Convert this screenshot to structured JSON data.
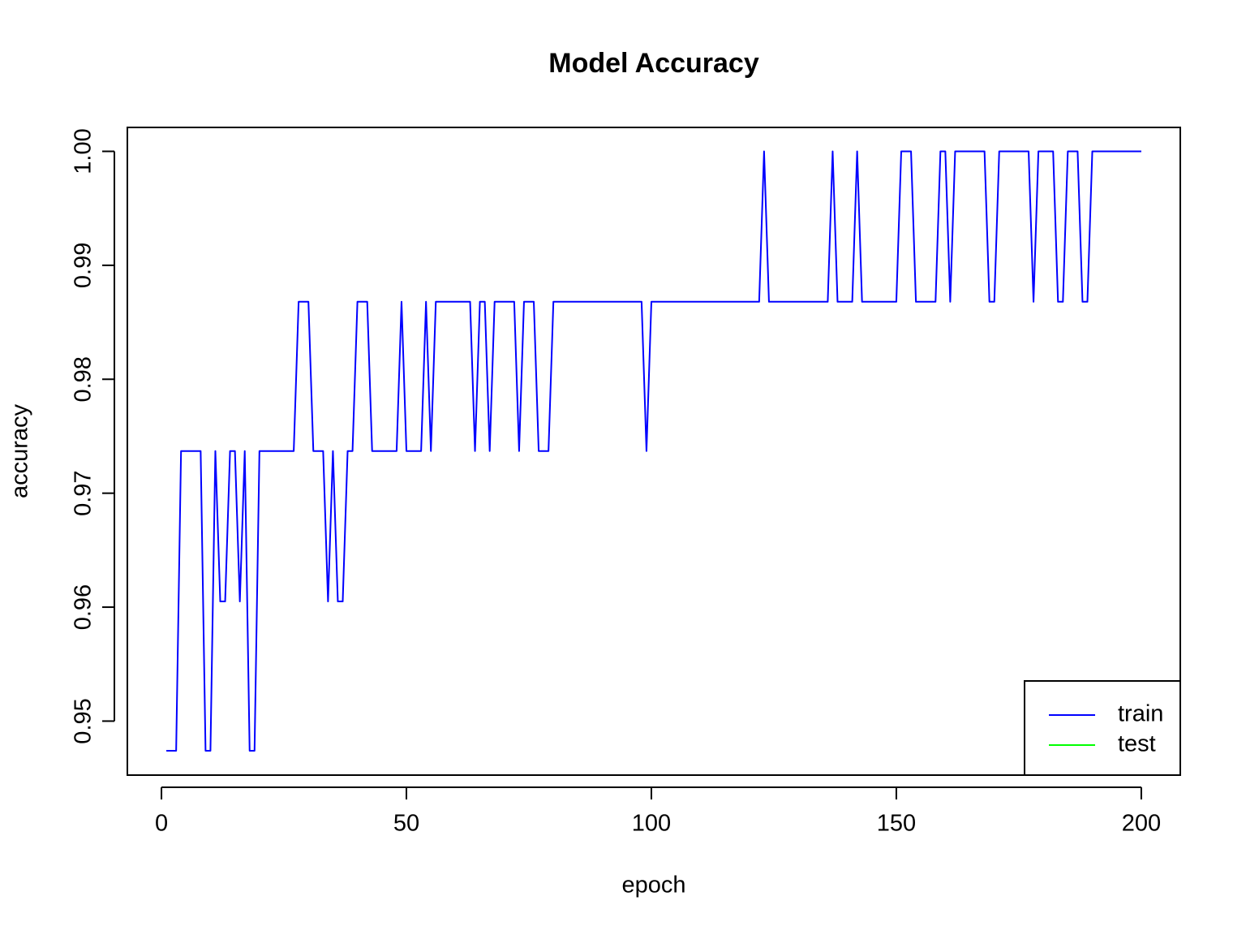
{
  "chart_data": {
    "type": "line",
    "title": "Model Accuracy",
    "x_label": "epoch",
    "y_label": "accuracy",
    "x": [
      1,
      2,
      3,
      4,
      5,
      6,
      7,
      8,
      9,
      10,
      11,
      12,
      13,
      14,
      15,
      16,
      17,
      18,
      19,
      20,
      21,
      22,
      23,
      24,
      25,
      26,
      27,
      28,
      29,
      30,
      31,
      32,
      33,
      34,
      35,
      36,
      37,
      38,
      39,
      40,
      41,
      42,
      43,
      44,
      45,
      46,
      47,
      48,
      49,
      50,
      51,
      52,
      53,
      54,
      55,
      56,
      57,
      58,
      59,
      60,
      61,
      62,
      63,
      64,
      65,
      66,
      67,
      68,
      69,
      70,
      71,
      72,
      73,
      74,
      75,
      76,
      77,
      78,
      79,
      80,
      81,
      82,
      83,
      84,
      85,
      86,
      87,
      88,
      89,
      90,
      91,
      92,
      93,
      94,
      95,
      96,
      97,
      98,
      99,
      100,
      101,
      102,
      103,
      104,
      105,
      106,
      107,
      108,
      109,
      110,
      111,
      112,
      113,
      114,
      115,
      116,
      117,
      118,
      119,
      120,
      121,
      122,
      123,
      124,
      125,
      126,
      127,
      128,
      129,
      130,
      131,
      132,
      133,
      134,
      135,
      136,
      137,
      138,
      139,
      140,
      141,
      142,
      143,
      144,
      145,
      146,
      147,
      148,
      149,
      150,
      151,
      152,
      153,
      154,
      155,
      156,
      157,
      158,
      159,
      160,
      161,
      162,
      163,
      164,
      165,
      166,
      167,
      168,
      169,
      170,
      171,
      172,
      173,
      174,
      175,
      176,
      177,
      178,
      179,
      180,
      181,
      182,
      183,
      184,
      185,
      186,
      187,
      188,
      189,
      190,
      191,
      192,
      193,
      194,
      195,
      196,
      197,
      198,
      199,
      200
    ],
    "series": [
      {
        "name": "train",
        "color": "#0000ff",
        "values": [
          0.9474,
          0.9474,
          0.9474,
          0.9737,
          0.9737,
          0.9737,
          0.9737,
          0.9737,
          0.9474,
          0.9474,
          0.9737,
          0.9605,
          0.9605,
          0.9737,
          0.9737,
          0.9605,
          0.9737,
          0.9474,
          0.9474,
          0.9737,
          0.9737,
          0.9737,
          0.9737,
          0.9737,
          0.9737,
          0.9737,
          0.9737,
          0.9868,
          0.9868,
          0.9868,
          0.9737,
          0.9737,
          0.9737,
          0.9605,
          0.9737,
          0.9605,
          0.9605,
          0.9737,
          0.9737,
          0.9868,
          0.9868,
          0.9868,
          0.9737,
          0.9737,
          0.9737,
          0.9737,
          0.9737,
          0.9737,
          0.9868,
          0.9737,
          0.9737,
          0.9737,
          0.9737,
          0.9868,
          0.9737,
          0.9868,
          0.9868,
          0.9868,
          0.9868,
          0.9868,
          0.9868,
          0.9868,
          0.9868,
          0.9737,
          0.9868,
          0.9868,
          0.9737,
          0.9868,
          0.9868,
          0.9868,
          0.9868,
          0.9868,
          0.9737,
          0.9868,
          0.9868,
          0.9868,
          0.9737,
          0.9737,
          0.9737,
          0.9868,
          0.9868,
          0.9868,
          0.9868,
          0.9868,
          0.9868,
          0.9868,
          0.9868,
          0.9868,
          0.9868,
          0.9868,
          0.9868,
          0.9868,
          0.9868,
          0.9868,
          0.9868,
          0.9868,
          0.9868,
          0.9868,
          0.9737,
          0.9868,
          0.9868,
          0.9868,
          0.9868,
          0.9868,
          0.9868,
          0.9868,
          0.9868,
          0.9868,
          0.9868,
          0.9868,
          0.9868,
          0.9868,
          0.9868,
          0.9868,
          0.9868,
          0.9868,
          0.9868,
          0.9868,
          0.9868,
          0.9868,
          0.9868,
          0.9868,
          1,
          0.9868,
          0.9868,
          0.9868,
          0.9868,
          0.9868,
          0.9868,
          0.9868,
          0.9868,
          0.9868,
          0.9868,
          0.9868,
          0.9868,
          0.9868,
          1,
          0.9868,
          0.9868,
          0.9868,
          0.9868,
          1,
          0.9868,
          0.9868,
          0.9868,
          0.9868,
          0.9868,
          0.9868,
          0.9868,
          0.9868,
          1,
          1,
          1,
          0.9868,
          0.9868,
          0.9868,
          0.9868,
          0.9868,
          1,
          1,
          0.9868,
          1,
          1,
          1,
          1,
          1,
          1,
          1,
          0.9868,
          0.9868,
          1,
          1,
          1,
          1,
          1,
          1,
          1,
          0.9868,
          1,
          1,
          1,
          1,
          0.9868,
          0.9868,
          1,
          1,
          1,
          0.9868,
          0.9868,
          1,
          1,
          1,
          1,
          1,
          1,
          1,
          1,
          1,
          1,
          1
        ]
      },
      {
        "name": "test",
        "color": "#00ff00",
        "values": [
          null,
          null,
          null,
          null,
          null,
          null,
          null,
          null,
          null,
          null,
          null,
          null,
          null,
          null,
          null,
          null,
          null,
          null,
          null,
          null,
          null,
          null,
          null,
          null,
          null,
          null,
          null,
          null,
          null,
          null,
          null,
          null,
          null,
          null,
          null,
          null,
          null,
          null,
          null,
          null,
          null,
          null,
          null,
          null,
          null,
          null,
          null,
          null,
          null,
          null,
          null,
          null,
          null,
          null,
          null,
          null,
          null,
          null,
          null,
          null,
          null,
          null,
          null,
          null,
          null,
          null,
          null,
          null,
          null,
          null,
          null,
          null,
          null,
          null,
          null,
          null,
          null,
          null,
          null,
          null,
          null,
          null,
          null,
          null,
          null,
          null,
          null,
          null,
          null,
          null,
          null,
          null,
          null,
          null,
          null,
          null,
          null,
          null,
          null,
          null,
          null,
          null,
          null,
          null,
          null,
          null,
          null,
          null,
          null,
          null,
          null,
          null,
          null,
          null,
          null,
          null,
          null,
          null,
          null,
          null,
          null,
          null,
          null,
          null,
          null,
          null,
          null,
          null,
          null,
          null,
          null,
          null,
          null,
          null,
          null,
          null,
          null,
          null,
          null,
          null,
          null,
          null,
          null,
          null,
          null,
          null,
          null,
          null,
          null,
          null,
          null,
          null,
          null,
          null,
          null,
          null,
          null,
          null,
          null,
          null,
          null,
          null,
          null,
          null,
          null,
          null,
          null,
          null,
          null,
          null,
          null,
          null,
          null,
          null,
          null,
          null,
          null,
          null,
          null,
          null,
          null,
          null,
          null,
          null,
          null,
          null,
          null,
          null,
          null,
          null,
          null,
          null,
          null,
          null,
          null,
          null,
          null,
          null,
          null,
          null
        ]
      }
    ],
    "xlim": [
      -6.96,
      207.96
    ],
    "xticks": [
      0,
      50,
      100,
      150,
      200
    ],
    "ylim": [
      0.94526,
      1.0021
    ],
    "yticks": [
      0.95,
      0.96,
      0.97,
      0.98,
      0.99,
      {
        "value": 1,
        "label": "1.00"
      }
    ],
    "legend": "bottom-right",
    "grid": false
  }
}
